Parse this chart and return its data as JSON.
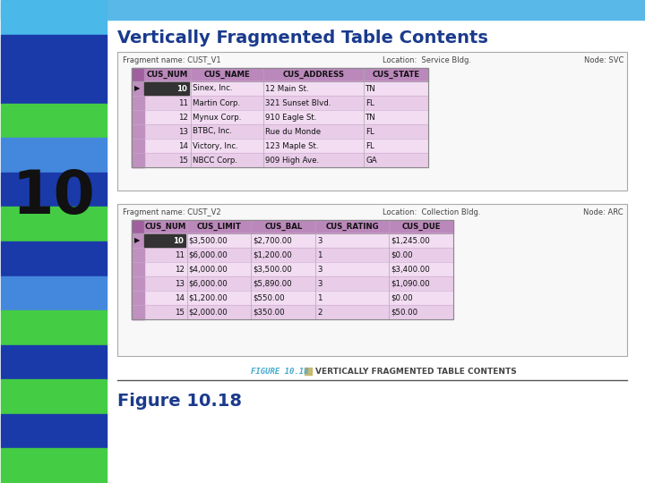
{
  "title": "Vertically Fragmented Table Contents",
  "figure_label": "Figure 10.18",
  "figure_caption_small": "FIGURE 10.18",
  "figure_caption_desc": "Vertically Fragmented Table Contents",
  "number": "10",
  "bg_color": "#f0f0f0",
  "content_bg": "#f0f0f0",
  "title_color": "#1a3a8c",
  "left_bar_colors": [
    "#4ab8e8",
    "#1a3aaa",
    "#1a3aaa",
    "#44cc44",
    "#4488dd",
    "#1a3aaa",
    "#44cc44",
    "#1a3aaa",
    "#4488dd",
    "#44cc44",
    "#1a3aaa",
    "#44cc44",
    "#1a3aaa",
    "#44cc44"
  ],
  "top_bar_color": "#5ab8e8",
  "fragment1": {
    "name": "Fragment name: CUST_V1",
    "location": "Location:  Service Bldg.",
    "node": "Node: SVC",
    "headers": [
      "CUS_NUM",
      "CUS_NAME",
      "CUS_ADDRESS",
      "CUS_STATE"
    ],
    "header_bg": "#bb88bb",
    "row_bg_even": "#f2ddf2",
    "row_bg_odd": "#e8cce8",
    "rows": [
      [
        "10",
        "Sinex, Inc.",
        "12 Main St.",
        "TN"
      ],
      [
        "11",
        "Martin Corp.",
        "321 Sunset Blvd.",
        "FL"
      ],
      [
        "12",
        "Mynux Corp.",
        "910 Eagle St.",
        "TN"
      ],
      [
        "13",
        "BTBC, Inc.",
        "Rue du Monde",
        "FL"
      ],
      [
        "14",
        "Victory, Inc.",
        "123 Maple St.",
        "FL"
      ],
      [
        "15",
        "NBCC Corp.",
        "909 High Ave.",
        "GA"
      ]
    ]
  },
  "fragment2": {
    "name": "Fragment name: CUST_V2",
    "location": "Location:  Collection Bldg.",
    "node": "Node: ARC",
    "headers": [
      "CUS_NUM",
      "CUS_LIMIT",
      "CUS_BAL",
      "CUS_RATING",
      "CUS_DUE"
    ],
    "header_bg": "#bb88bb",
    "row_bg_even": "#f2ddf2",
    "row_bg_odd": "#e8cce8",
    "rows": [
      [
        "10",
        "$3,500.00",
        "$2,700.00",
        "3",
        "$1,245.00"
      ],
      [
        "11",
        "$6,000.00",
        "$1,200.00",
        "1",
        "$0.00"
      ],
      [
        "12",
        "$4,000.00",
        "$3,500.00",
        "3",
        "$3,400.00"
      ],
      [
        "13",
        "$6,000.00",
        "$5,890.00",
        "3",
        "$1,090.00"
      ],
      [
        "14",
        "$1,200.00",
        "$550.00",
        "1",
        "$0.00"
      ],
      [
        "15",
        "$2,000.00",
        "$350.00",
        "2",
        "$50.00"
      ]
    ]
  }
}
